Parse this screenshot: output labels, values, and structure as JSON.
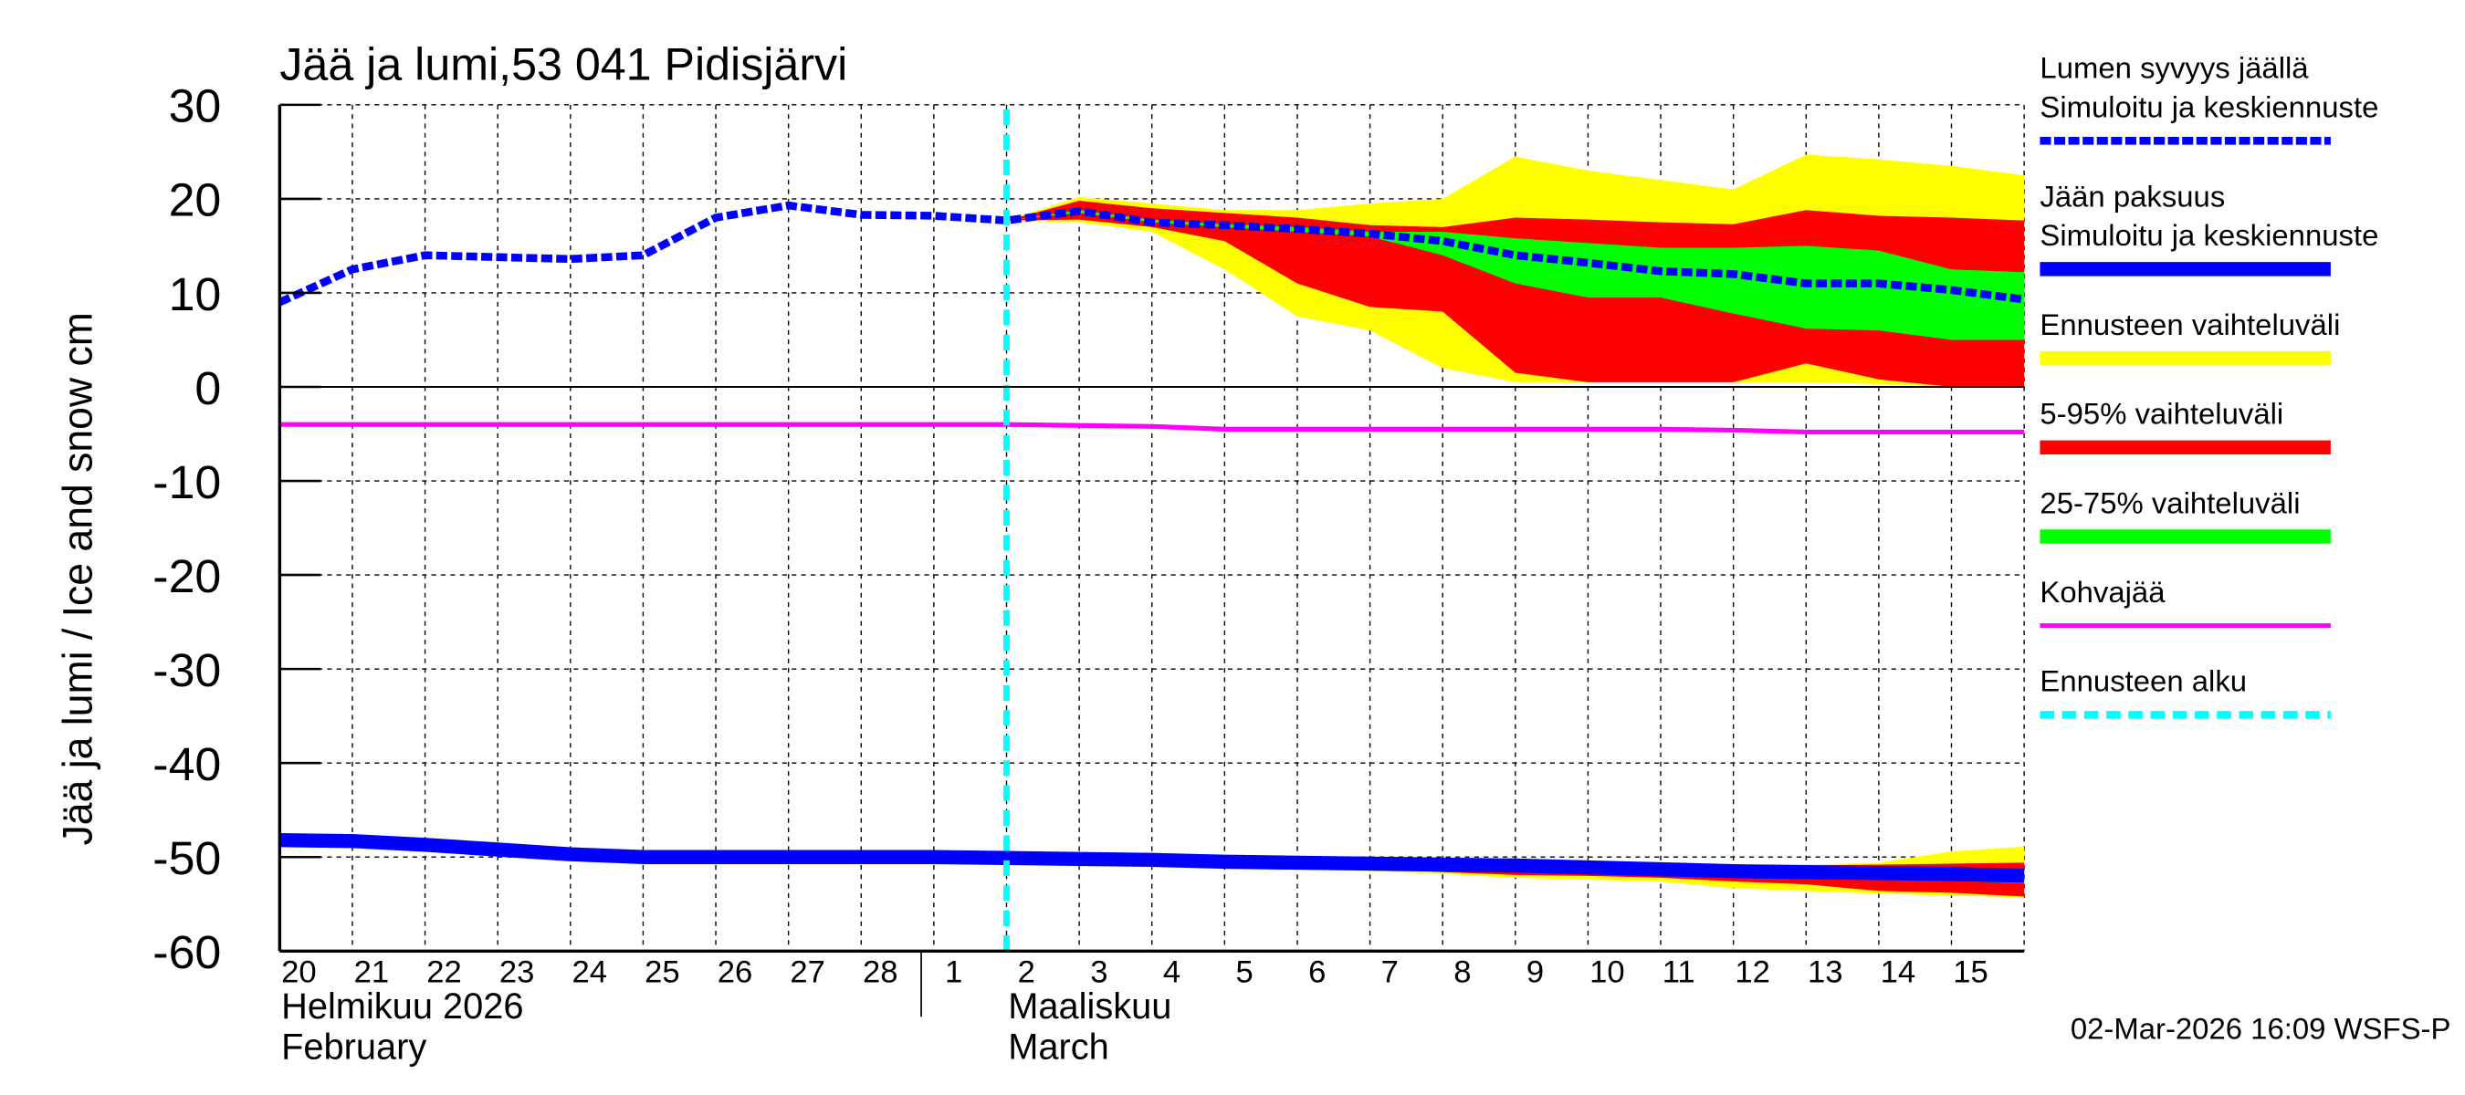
{
  "chart_data": {
    "type": "area",
    "title": "Jää ja lumi,53 041 Pidisjärvi",
    "ylabel": "Jää ja lumi / Ice and snow    cm",
    "ylim": [
      -60,
      30
    ],
    "yticks": [
      "30",
      "20",
      "10",
      "0",
      "-10",
      "-20",
      "-30",
      "-40",
      "-50",
      "-60"
    ],
    "grid": true,
    "legend_placement": "right",
    "x": [
      "2026-02-20",
      "2026-02-21",
      "2026-02-22",
      "2026-02-23",
      "2026-02-24",
      "2026-02-25",
      "2026-02-26",
      "2026-02-27",
      "2026-02-28",
      "2026-03-01",
      "2026-03-02",
      "2026-03-03",
      "2026-03-04",
      "2026-03-05",
      "2026-03-06",
      "2026-03-07",
      "2026-03-08",
      "2026-03-09",
      "2026-03-10",
      "2026-03-11",
      "2026-03-12",
      "2026-03-13",
      "2026-03-14",
      "2026-03-15",
      "2026-03-16"
    ],
    "xtick_labels": [
      "20",
      "21",
      "22",
      "23",
      "24",
      "25",
      "26",
      "27",
      "28",
      "1",
      "2",
      "3",
      "4",
      "5",
      "6",
      "7",
      "8",
      "9",
      "10",
      "11",
      "12",
      "13",
      "14",
      "15"
    ],
    "month_labels": [
      {
        "fi": "Helmikuu  2026",
        "en": "February"
      },
      {
        "fi": "Maaliskuu",
        "en": "March"
      }
    ],
    "forecast_start": "2026-03-02",
    "series": [
      {
        "name": "Lumen syvyys jäällä Simuloitu ja keskiennuste",
        "color": "#0000ff",
        "style": "dashed",
        "values": [
          9,
          12.5,
          14,
          13.8,
          13.6,
          14,
          18,
          19.3,
          18.3,
          18.2,
          17.7,
          18.7,
          17.5,
          17.2,
          16.8,
          16.3,
          15.5,
          14,
          13.2,
          12.3,
          12,
          11,
          11,
          10.3,
          9.3
        ]
      },
      {
        "name": "Jään paksuus Simuloitu ja keskiennuste",
        "color": "#0000ff",
        "style": "solid",
        "values": [
          -48.2,
          -48.3,
          -48.7,
          -49.2,
          -49.7,
          -50,
          -50,
          -50,
          -50,
          -50,
          -50.1,
          -50.2,
          -50.3,
          -50.5,
          -50.6,
          -50.7,
          -50.8,
          -50.9,
          -51.1,
          -51.3,
          -51.5,
          -51.6,
          -51.7,
          -51.8,
          -52
        ]
      },
      {
        "name": "Kohvajää",
        "color": "#ff00ff",
        "style": "solid",
        "values": [
          -4,
          -4,
          -4,
          -4,
          -4,
          -4,
          -4,
          -4,
          -4,
          -4,
          -4,
          -4.1,
          -4.2,
          -4.5,
          -4.5,
          -4.5,
          -4.5,
          -4.5,
          -4.5,
          -4.5,
          -4.6,
          -4.8,
          -4.8,
          -4.8,
          -4.8
        ]
      }
    ],
    "bands": [
      {
        "name": "Ennusteen vaihteluväli",
        "color": "#ffff00",
        "target": "snow",
        "upper": [
          17.7,
          20.2,
          19.5,
          18.8,
          18.8,
          19.5,
          20,
          24.5,
          23,
          22,
          21,
          24.7,
          24.2,
          23.5,
          22.5
        ],
        "lower": [
          17.7,
          17.5,
          16.5,
          12.5,
          7.5,
          6,
          2,
          0.5,
          0.5,
          0.5,
          0.5,
          0.5,
          0.3,
          0,
          0
        ]
      },
      {
        "name": "5-95% vaihteluväli",
        "color": "#ff0000",
        "target": "snow",
        "upper": [
          17.7,
          19.8,
          19,
          18.5,
          18,
          17.2,
          17,
          18,
          17.8,
          17.5,
          17.3,
          18.8,
          18.2,
          18,
          17.7
        ],
        "lower": [
          17.7,
          17.8,
          17,
          15.5,
          11,
          8.5,
          8,
          1.5,
          0.5,
          0.5,
          0.5,
          2.5,
          0.8,
          0,
          0
        ]
      },
      {
        "name": "25-75% vaihteluväli",
        "color": "#00ff00",
        "target": "snow",
        "upper": [
          17.7,
          18.8,
          17.8,
          17.3,
          17,
          16.5,
          16.5,
          15.8,
          15.3,
          14.8,
          14.8,
          15,
          14.5,
          12.5,
          12.2
        ],
        "lower": [
          17.7,
          18.5,
          17.5,
          17,
          16.5,
          16,
          14,
          11,
          9.5,
          9.5,
          7.8,
          6.2,
          6,
          5,
          5
        ]
      },
      {
        "name": "Ennusteen vaihteluväli",
        "color": "#ffff00",
        "target": "ice",
        "upper": [
          -50.1,
          -50.2,
          -50.3,
          -50.4,
          -50.5,
          -50.5,
          -50.6,
          -50.6,
          -50.7,
          -50.7,
          -50.8,
          -50.8,
          -50.6,
          -49.4,
          -48.9
        ],
        "lower": [
          -50.1,
          -50.3,
          -50.5,
          -50.9,
          -51.2,
          -51.5,
          -51.8,
          -52.2,
          -52.4,
          -52.6,
          -53.3,
          -53.6,
          -53.9,
          -54.1,
          -54.3
        ]
      },
      {
        "name": "5-95% vaihteluväli",
        "color": "#ff0000",
        "target": "ice",
        "upper": [
          -50.1,
          -50.2,
          -50.3,
          -50.4,
          -50.5,
          -50.5,
          -50.6,
          -50.6,
          -50.7,
          -50.8,
          -50.9,
          -50.9,
          -50.8,
          -50.7,
          -50.6
        ],
        "lower": [
          -50.1,
          -50.3,
          -50.4,
          -50.7,
          -51,
          -51.3,
          -51.6,
          -51.9,
          -52,
          -52.2,
          -52.6,
          -52.9,
          -53.6,
          -53.8,
          -54.2
        ]
      },
      {
        "name": "25-75% vaihteluväli",
        "color": "#00ff00",
        "target": "ice",
        "upper": [
          -50.1,
          -50.2,
          -50.3,
          -50.5,
          -50.6,
          -50.7,
          -50.8,
          -50.9,
          -51.1,
          -51.3,
          -51.4,
          -51.5,
          -51.6,
          -51.7,
          -51.9
        ],
        "lower": [
          -50.1,
          -50.2,
          -50.4,
          -50.6,
          -50.7,
          -50.8,
          -50.9,
          -51.1,
          -51.3,
          -51.5,
          -51.7,
          -51.9,
          -52.4,
          -52.5,
          -52.8
        ]
      }
    ],
    "legend": [
      {
        "lines": [
          "Lumen syvyys jäällä",
          "Simuloitu ja keskiennuste"
        ],
        "color": "#0000ff",
        "style": "dashed"
      },
      {
        "lines": [
          "Jään paksuus",
          "Simuloitu ja keskiennuste"
        ],
        "color": "#0000ff",
        "style": "solid"
      },
      {
        "lines": [
          "Ennusteen vaihteluväli"
        ],
        "color": "#ffff00",
        "style": "bar"
      },
      {
        "lines": [
          "5-95% vaihteluväli"
        ],
        "color": "#ff0000",
        "style": "bar"
      },
      {
        "lines": [
          "25-75% vaihteluväli"
        ],
        "color": "#00ff00",
        "style": "bar"
      },
      {
        "lines": [
          "Kohvajää"
        ],
        "color": "#ff00ff",
        "style": "line"
      },
      {
        "lines": [
          "Ennusteen alku"
        ],
        "color": "#00ffff",
        "style": "dashed"
      }
    ],
    "timestamp": "02-Mar-2026 16:09 WSFS-P"
  }
}
